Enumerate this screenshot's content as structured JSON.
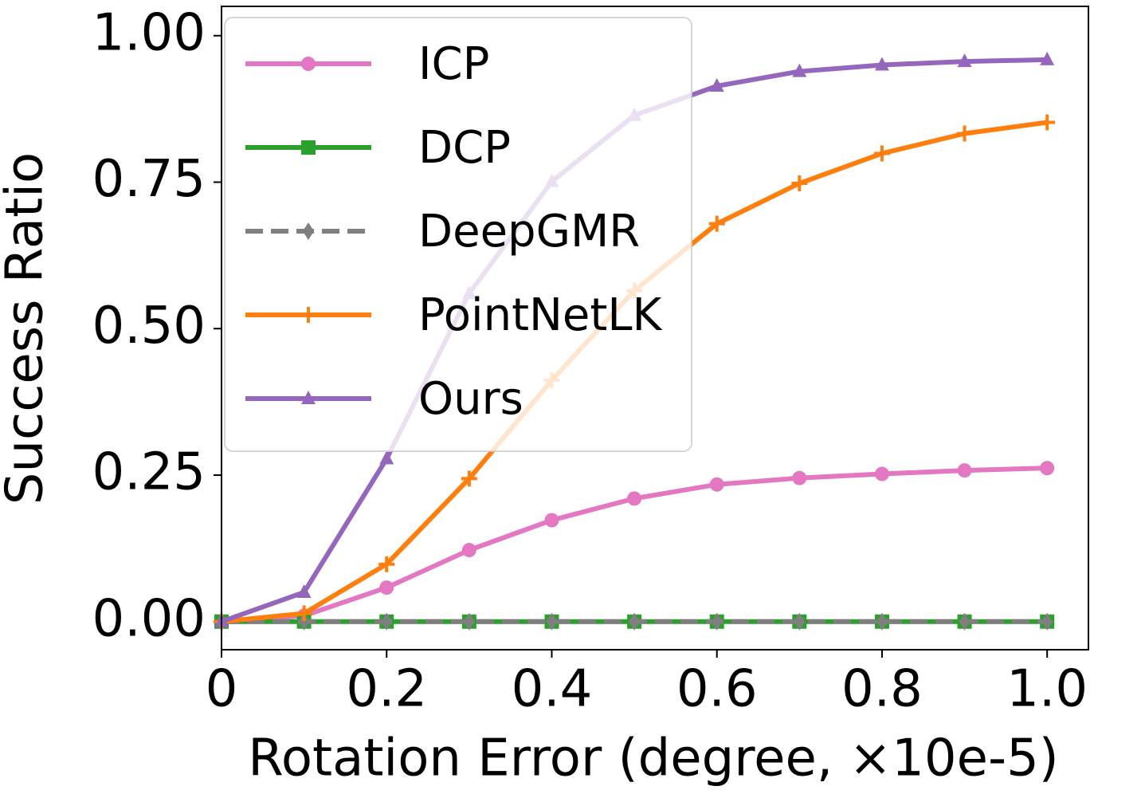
{
  "chart_data": {
    "type": "line",
    "x_label": "Rotation Error (degree, ×10e-5)",
    "y_label": "Success Ratio",
    "x": [
      0,
      0.1,
      0.2,
      0.3,
      0.4,
      0.5,
      0.6,
      0.7,
      0.8,
      0.9,
      1.0
    ],
    "series": [
      {
        "name": "ICP",
        "color": "#e377c2",
        "marker": "circle",
        "linestyle": "solid",
        "values": [
          0,
          0.01,
          0.058,
          0.122,
          0.173,
          0.21,
          0.234,
          0.245,
          0.252,
          0.258,
          0.262
        ]
      },
      {
        "name": "DCP",
        "color": "#2ca02c",
        "marker": "square",
        "linestyle": "solid",
        "values": [
          0,
          0,
          0,
          0,
          0,
          0,
          0,
          0,
          0,
          0,
          0
        ]
      },
      {
        "name": "DeepGMR",
        "color": "#7f7f7f",
        "marker": "diamond",
        "linestyle": "dashed",
        "values": [
          0,
          0,
          0,
          0,
          0,
          0,
          0,
          0,
          0,
          0,
          0
        ]
      },
      {
        "name": "PointNetLK",
        "color": "#ff7f0e",
        "marker": "plus",
        "linestyle": "solid",
        "values": [
          0,
          0.014,
          0.098,
          0.244,
          0.412,
          0.565,
          0.679,
          0.748,
          0.799,
          0.833,
          0.852
        ]
      },
      {
        "name": "Ours",
        "color": "#9467bd",
        "marker": "triangle",
        "linestyle": "solid",
        "values": [
          0,
          0.05,
          0.278,
          0.56,
          0.751,
          0.864,
          0.914,
          0.939,
          0.95,
          0.956,
          0.959
        ]
      }
    ],
    "xlim": [
      0,
      1.05
    ],
    "ylim": [
      -0.048,
      1.05
    ],
    "xticks": [
      0,
      {
        "value": 0.2,
        "label": "0.2"
      },
      {
        "value": 0.4,
        "label": "0.4"
      },
      {
        "value": 0.6,
        "label": "0.6"
      },
      {
        "value": 0.8,
        "label": "0.8"
      },
      {
        "value": 1.0,
        "label": "1.0"
      }
    ],
    "yticks": [
      {
        "value": 0,
        "label": "0.00"
      },
      {
        "value": 0.25,
        "label": "0.25"
      },
      {
        "value": 0.5,
        "label": "0.50"
      },
      {
        "value": 0.75,
        "label": "0.75"
      },
      {
        "value": 1.0,
        "label": "1.00"
      }
    ],
    "legend": "upper left"
  }
}
